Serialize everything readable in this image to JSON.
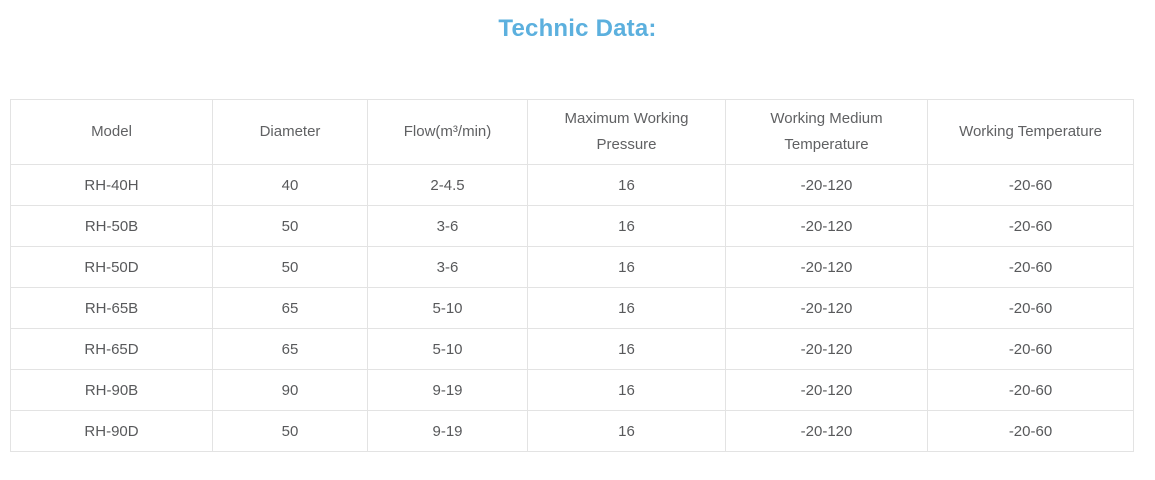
{
  "page": {
    "title": "Technic Data:",
    "title_color": "#5cb0de"
  },
  "table": {
    "columns": [
      "Model",
      "Diameter",
      "Flow(m³/min)",
      "Maximum Working Pressure",
      "Working Medium Temperature",
      "Working Temperature"
    ],
    "rows": [
      [
        "RH-40H",
        "40",
        "2-4.5",
        "16",
        "-20-120",
        "-20-60"
      ],
      [
        "RH-50B",
        "50",
        "3-6",
        "16",
        "-20-120",
        "-20-60"
      ],
      [
        "RH-50D",
        "50",
        "3-6",
        "16",
        "-20-120",
        "-20-60"
      ],
      [
        "RH-65B",
        "65",
        "5-10",
        "16",
        "-20-120",
        "-20-60"
      ],
      [
        "RH-65D",
        "65",
        "5-10",
        "16",
        "-20-120",
        "-20-60"
      ],
      [
        "RH-90B",
        "90",
        "9-19",
        "16",
        "-20-120",
        "-20-60"
      ],
      [
        "RH-90D",
        "50",
        "9-19",
        "16",
        "-20-120",
        "-20-60"
      ]
    ],
    "colors": {
      "border": "#e3e3e3",
      "header_text": "#606163",
      "cell_text": "#58595b"
    }
  }
}
